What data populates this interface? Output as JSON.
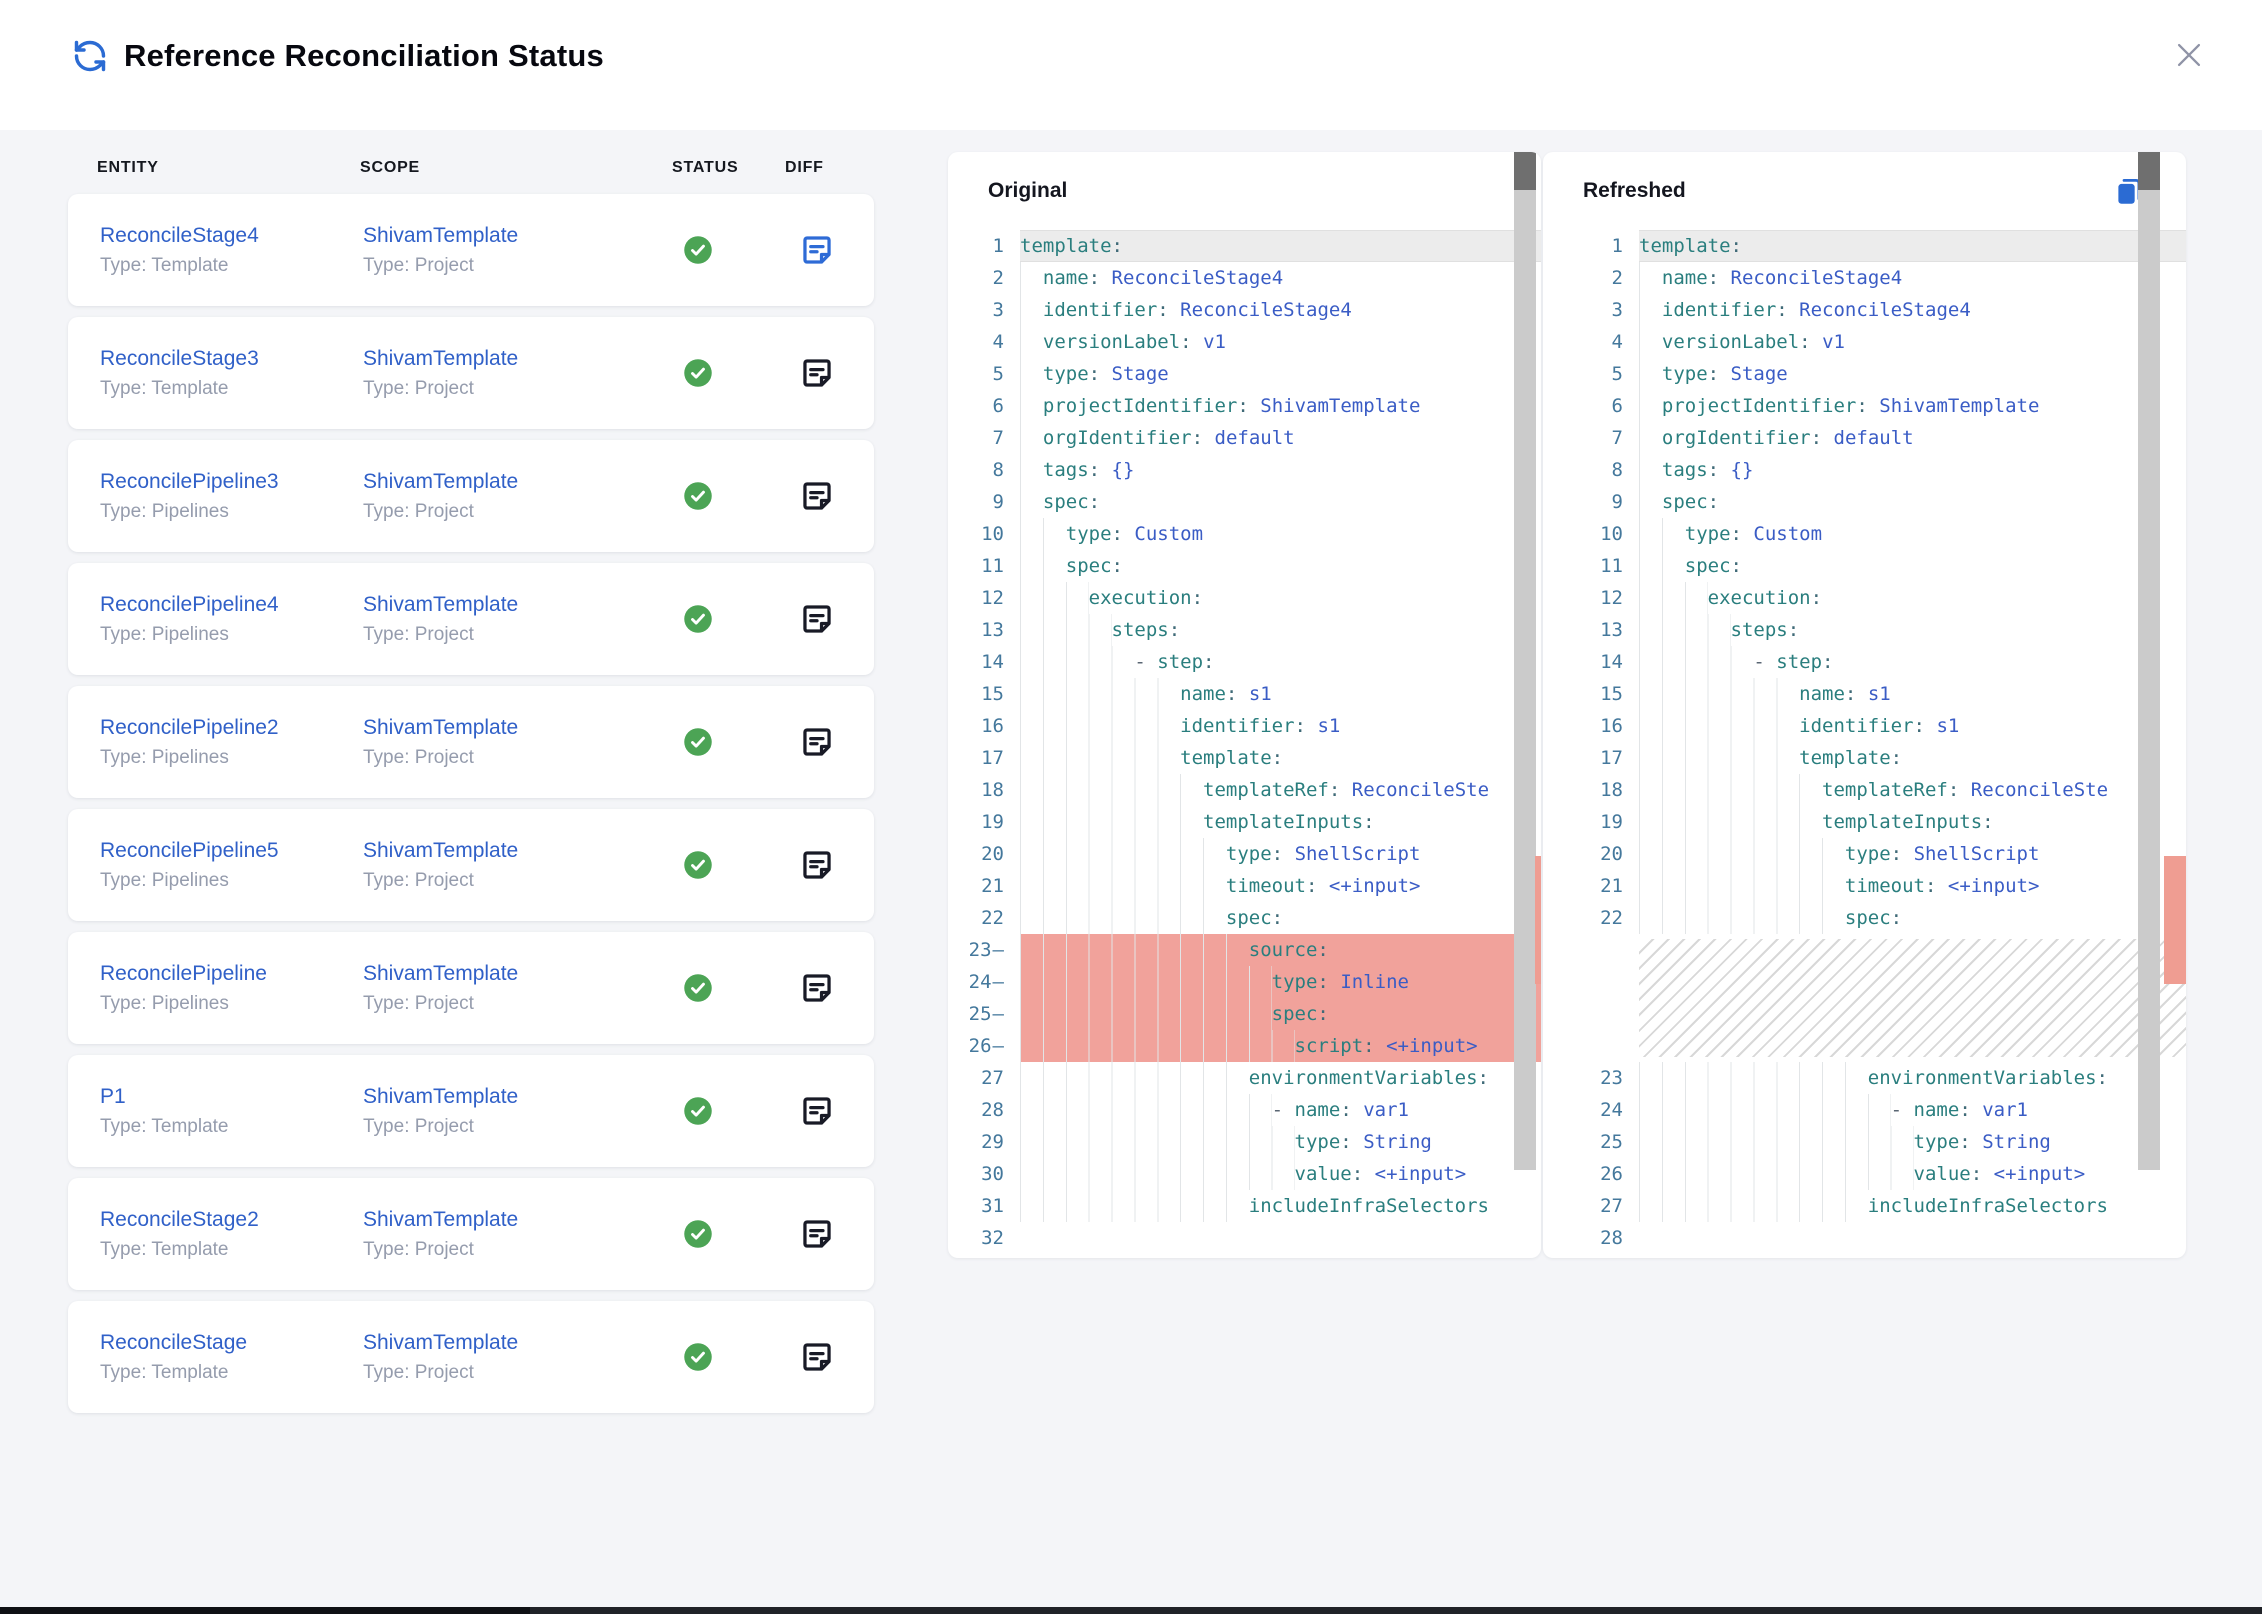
{
  "dialog": {
    "title": "Reference Reconciliation Status",
    "accent_blue": "#2e6bd6",
    "success_green": "#4ca455",
    "deleted_red": "#f1a29b"
  },
  "table": {
    "headers": [
      "ENTITY",
      "SCOPE",
      "STATUS",
      "DIFF"
    ],
    "rows": [
      {
        "entity": "ReconcileStage4",
        "entity_type": "Type: Template",
        "scope": "ShivamTemplate",
        "scope_type": "Type: Project",
        "status": "success",
        "diff_selected": true
      },
      {
        "entity": "ReconcileStage3",
        "entity_type": "Type: Template",
        "scope": "ShivamTemplate",
        "scope_type": "Type: Project",
        "status": "success",
        "diff_selected": false
      },
      {
        "entity": "ReconcilePipeline3",
        "entity_type": "Type: Pipelines",
        "scope": "ShivamTemplate",
        "scope_type": "Type: Project",
        "status": "success",
        "diff_selected": false
      },
      {
        "entity": "ReconcilePipeline4",
        "entity_type": "Type: Pipelines",
        "scope": "ShivamTemplate",
        "scope_type": "Type: Project",
        "status": "success",
        "diff_selected": false
      },
      {
        "entity": "ReconcilePipeline2",
        "entity_type": "Type: Pipelines",
        "scope": "ShivamTemplate",
        "scope_type": "Type: Project",
        "status": "success",
        "diff_selected": false
      },
      {
        "entity": "ReconcilePipeline5",
        "entity_type": "Type: Pipelines",
        "scope": "ShivamTemplate",
        "scope_type": "Type: Project",
        "status": "success",
        "diff_selected": false
      },
      {
        "entity": "ReconcilePipeline",
        "entity_type": "Type: Pipelines",
        "scope": "ShivamTemplate",
        "scope_type": "Type: Project",
        "status": "success",
        "diff_selected": false
      },
      {
        "entity": "P1",
        "entity_type": "Type: Template",
        "scope": "ShivamTemplate",
        "scope_type": "Type: Project",
        "status": "success",
        "diff_selected": false
      },
      {
        "entity": "ReconcileStage2",
        "entity_type": "Type: Template",
        "scope": "ShivamTemplate",
        "scope_type": "Type: Project",
        "status": "success",
        "diff_selected": false
      },
      {
        "entity": "ReconcileStage",
        "entity_type": "Type: Template",
        "scope": "ShivamTemplate",
        "scope_type": "Type: Project",
        "status": "success",
        "diff_selected": false
      }
    ]
  },
  "diff": {
    "original": {
      "title": "Original",
      "lines": [
        {
          "n": 1,
          "ind": 0,
          "key": "template",
          "cur": true
        },
        {
          "n": 2,
          "ind": 2,
          "key": "name",
          "val": "ReconcileStage4"
        },
        {
          "n": 3,
          "ind": 2,
          "key": "identifier",
          "val": "ReconcileStage4"
        },
        {
          "n": 4,
          "ind": 2,
          "key": "versionLabel",
          "val": "v1"
        },
        {
          "n": 5,
          "ind": 2,
          "key": "type",
          "val": "Stage"
        },
        {
          "n": 6,
          "ind": 2,
          "key": "projectIdentifier",
          "val": "ShivamTemplate"
        },
        {
          "n": 7,
          "ind": 2,
          "key": "orgIdentifier",
          "val": "default"
        },
        {
          "n": 8,
          "ind": 2,
          "key": "tags",
          "val": "{}"
        },
        {
          "n": 9,
          "ind": 2,
          "key": "spec"
        },
        {
          "n": 10,
          "ind": 4,
          "key": "type",
          "val": "Custom"
        },
        {
          "n": 11,
          "ind": 4,
          "key": "spec"
        },
        {
          "n": 12,
          "ind": 6,
          "key": "execution"
        },
        {
          "n": 13,
          "ind": 8,
          "key": "steps"
        },
        {
          "n": 14,
          "ind": 10,
          "dash": true,
          "key": "step"
        },
        {
          "n": 15,
          "ind": 14,
          "key": "name",
          "val": "s1"
        },
        {
          "n": 16,
          "ind": 14,
          "key": "identifier",
          "val": "s1"
        },
        {
          "n": 17,
          "ind": 14,
          "key": "template"
        },
        {
          "n": 18,
          "ind": 16,
          "key": "templateRef",
          "val": "ReconcileSte"
        },
        {
          "n": 19,
          "ind": 16,
          "key": "templateInputs"
        },
        {
          "n": 20,
          "ind": 18,
          "key": "type",
          "val": "ShellScript"
        },
        {
          "n": 21,
          "ind": 18,
          "key": "timeout",
          "val": "<+input>"
        },
        {
          "n": 22,
          "ind": 18,
          "key": "spec"
        },
        {
          "n": 23,
          "ind": 20,
          "key": "source",
          "del": true
        },
        {
          "n": 24,
          "ind": 22,
          "key": "type",
          "val": "Inline",
          "del": true
        },
        {
          "n": 25,
          "ind": 22,
          "key": "spec",
          "del": true
        },
        {
          "n": 26,
          "ind": 24,
          "key": "script",
          "val": "<+input>",
          "del": true
        },
        {
          "n": 27,
          "ind": 20,
          "key": "environmentVariables"
        },
        {
          "n": 28,
          "ind": 22,
          "dash": true,
          "key": "name",
          "val": "var1"
        },
        {
          "n": 29,
          "ind": 24,
          "key": "type",
          "val": "String"
        },
        {
          "n": 30,
          "ind": 24,
          "key": "value",
          "val": "<+input>"
        },
        {
          "n": 31,
          "ind": 20,
          "key": "includeInfraSelectors",
          "nocolon": true
        },
        {
          "n": 32
        }
      ]
    },
    "refreshed": {
      "title": "Refreshed",
      "lines": [
        {
          "n": 1,
          "ind": 0,
          "key": "template",
          "cur": true
        },
        {
          "n": 2,
          "ind": 2,
          "key": "name",
          "val": "ReconcileStage4"
        },
        {
          "n": 3,
          "ind": 2,
          "key": "identifier",
          "val": "ReconcileStage4"
        },
        {
          "n": 4,
          "ind": 2,
          "key": "versionLabel",
          "val": "v1"
        },
        {
          "n": 5,
          "ind": 2,
          "key": "type",
          "val": "Stage"
        },
        {
          "n": 6,
          "ind": 2,
          "key": "projectIdentifier",
          "val": "ShivamTemplate"
        },
        {
          "n": 7,
          "ind": 2,
          "key": "orgIdentifier",
          "val": "default"
        },
        {
          "n": 8,
          "ind": 2,
          "key": "tags",
          "val": "{}"
        },
        {
          "n": 9,
          "ind": 2,
          "key": "spec"
        },
        {
          "n": 10,
          "ind": 4,
          "key": "type",
          "val": "Custom"
        },
        {
          "n": 11,
          "ind": 4,
          "key": "spec"
        },
        {
          "n": 12,
          "ind": 6,
          "key": "execution"
        },
        {
          "n": 13,
          "ind": 8,
          "key": "steps"
        },
        {
          "n": 14,
          "ind": 10,
          "dash": true,
          "key": "step"
        },
        {
          "n": 15,
          "ind": 14,
          "key": "name",
          "val": "s1"
        },
        {
          "n": 16,
          "ind": 14,
          "key": "identifier",
          "val": "s1"
        },
        {
          "n": 17,
          "ind": 14,
          "key": "template"
        },
        {
          "n": 18,
          "ind": 16,
          "key": "templateRef",
          "val": "ReconcileSte"
        },
        {
          "n": 19,
          "ind": 16,
          "key": "templateInputs"
        },
        {
          "n": 20,
          "ind": 18,
          "key": "type",
          "val": "ShellScript"
        },
        {
          "n": 21,
          "ind": 18,
          "key": "timeout",
          "val": "<+input>"
        },
        {
          "n": 22,
          "ind": 18,
          "key": "spec"
        },
        {
          "hatch": 4
        },
        {
          "n": 23,
          "ind": 20,
          "key": "environmentVariables"
        },
        {
          "n": 24,
          "ind": 22,
          "dash": true,
          "key": "name",
          "val": "var1"
        },
        {
          "n": 25,
          "ind": 24,
          "key": "type",
          "val": "String"
        },
        {
          "n": 26,
          "ind": 24,
          "key": "value",
          "val": "<+input>"
        },
        {
          "n": 27,
          "ind": 20,
          "key": "includeInfraSelectors",
          "nocolon": true
        },
        {
          "n": 28
        }
      ]
    }
  }
}
